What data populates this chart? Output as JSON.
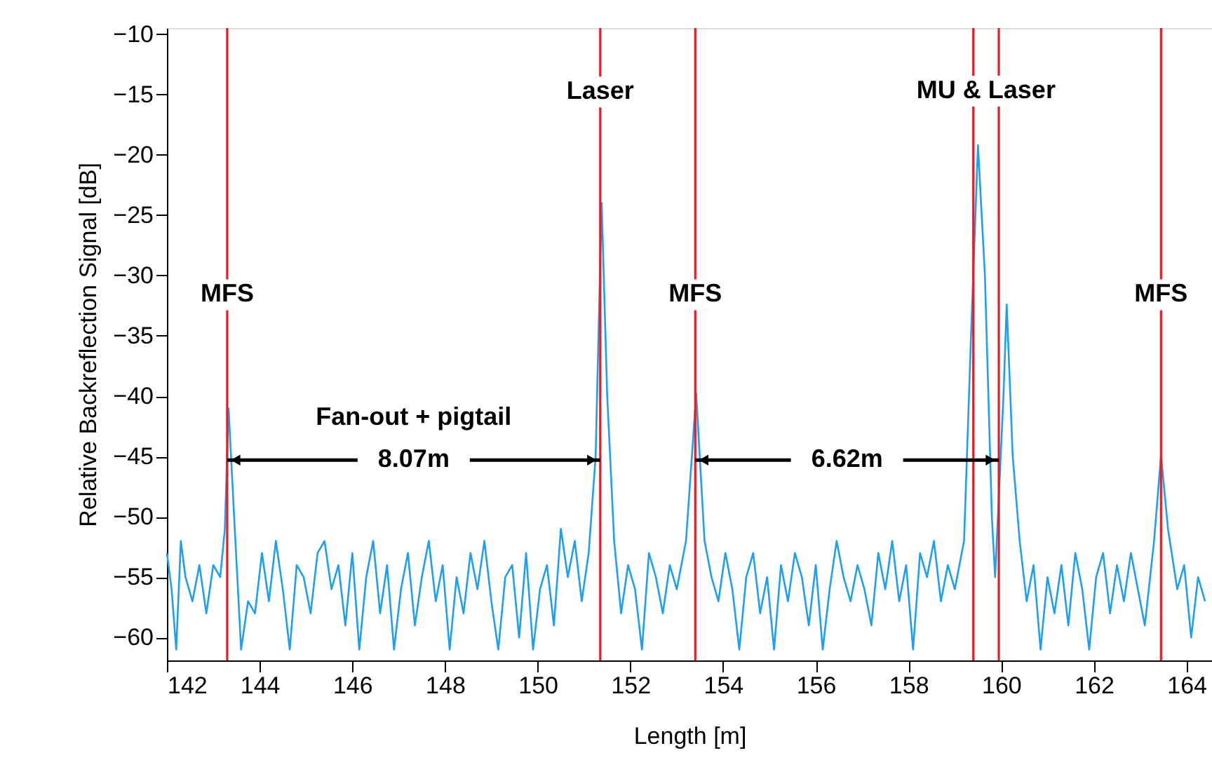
{
  "chart_data": {
    "type": "line",
    "xlabel": "Length [m]",
    "ylabel": "Relative Backreflection Signal [dB]",
    "xlim": [
      142,
      164.55
    ],
    "ylim": [
      -61.9,
      -9.5
    ],
    "xticks": [
      142,
      144,
      146,
      148,
      150,
      152,
      154,
      156,
      158,
      160,
      162,
      164
    ],
    "yticks": [
      -10,
      -15,
      -20,
      -25,
      -30,
      -35,
      -40,
      -45,
      -50,
      -55,
      -60
    ],
    "grid": false,
    "marker": "none",
    "line_style": "solid",
    "series": [
      {
        "color": "#1e9ff0",
        "x": [
          142.0,
          142.1,
          142.2,
          142.3,
          142.4,
          142.55,
          142.7,
          142.85,
          143.0,
          143.15,
          143.25,
          143.33,
          143.45,
          143.6,
          143.75,
          143.9,
          144.05,
          144.2,
          144.35,
          144.5,
          144.65,
          144.8,
          144.95,
          145.1,
          145.25,
          145.4,
          145.55,
          145.7,
          145.85,
          146.0,
          146.15,
          146.3,
          146.45,
          146.6,
          146.75,
          146.9,
          147.05,
          147.2,
          147.35,
          147.5,
          147.65,
          147.8,
          147.95,
          148.1,
          148.25,
          148.4,
          148.55,
          148.7,
          148.85,
          149.0,
          149.15,
          149.3,
          149.45,
          149.6,
          149.75,
          149.9,
          150.05,
          150.2,
          150.35,
          150.5,
          150.65,
          150.8,
          150.95,
          151.1,
          151.25,
          151.38,
          151.5,
          151.65,
          151.8,
          151.95,
          152.1,
          152.25,
          152.4,
          152.55,
          152.7,
          152.85,
          153.0,
          153.2,
          153.42,
          153.6,
          153.75,
          153.9,
          154.05,
          154.2,
          154.35,
          154.5,
          154.65,
          154.8,
          154.95,
          155.1,
          155.25,
          155.4,
          155.55,
          155.7,
          155.85,
          156.0,
          156.15,
          156.3,
          156.45,
          156.6,
          156.75,
          156.9,
          157.05,
          157.2,
          157.35,
          157.5,
          157.65,
          157.8,
          157.95,
          158.1,
          158.25,
          158.4,
          158.55,
          158.7,
          158.85,
          159.0,
          159.2,
          159.35,
          159.5,
          159.65,
          159.8,
          159.87,
          160.05,
          160.12,
          160.25,
          160.4,
          160.55,
          160.7,
          160.85,
          161.0,
          161.15,
          161.3,
          161.45,
          161.6,
          161.75,
          161.9,
          162.05,
          162.2,
          162.35,
          162.5,
          162.65,
          162.8,
          162.95,
          163.1,
          163.3,
          163.45,
          163.6,
          163.8,
          163.95,
          164.1,
          164.25,
          164.4
        ],
        "values": [
          -53,
          -56,
          -61,
          -52,
          -55,
          -57,
          -54,
          -58,
          -54,
          -55,
          -51,
          -41,
          -50,
          -61,
          -57,
          -58,
          -53,
          -57,
          -52,
          -56,
          -61,
          -54,
          -55,
          -58,
          -53,
          -52,
          -56,
          -54,
          -59,
          -53,
          -61,
          -55,
          -52,
          -58,
          -54,
          -61,
          -56,
          -53,
          -59,
          -55,
          -52,
          -57,
          -54,
          -61,
          -55,
          -58,
          -53,
          -56,
          -52,
          -57,
          -61,
          -55,
          -54,
          -60,
          -53,
          -61,
          -56,
          -54,
          -59,
          -51,
          -55,
          -52,
          -57,
          -53,
          -45,
          -24,
          -40,
          -52,
          -58,
          -54,
          -56,
          -61,
          -53,
          -55,
          -58,
          -54,
          -56,
          -52,
          -39.8,
          -52,
          -55,
          -57,
          -53,
          -56,
          -61,
          -55,
          -53,
          -58,
          -55,
          -61,
          -54,
          -57,
          -53,
          -55,
          -59,
          -54,
          -61,
          -56,
          -52,
          -55,
          -57,
          -54,
          -56,
          -59,
          -53,
          -56,
          -52,
          -57,
          -54,
          -61,
          -53,
          -55,
          -52,
          -57,
          -54,
          -56,
          -52,
          -35,
          -19.2,
          -30,
          -50,
          -55,
          -40,
          -32.4,
          -45,
          -52,
          -57,
          -54,
          -61,
          -55,
          -58,
          -54,
          -59,
          -53,
          -56,
          -61,
          -55,
          -53,
          -58,
          -54,
          -57,
          -53,
          -56,
          -59,
          -52,
          -44.9,
          -51,
          -56,
          -54,
          -60,
          -55,
          -57
        ]
      }
    ],
    "ref_lines": [
      {
        "axis": "x",
        "value": 143.3,
        "color": "#e0202a"
      },
      {
        "axis": "x",
        "value": 151.35,
        "color": "#e0202a"
      },
      {
        "axis": "x",
        "value": 153.4,
        "color": "#e0202a"
      },
      {
        "axis": "x",
        "value": 159.4,
        "color": "#e0202a"
      },
      {
        "axis": "x",
        "value": 159.95,
        "color": "#e0202a"
      },
      {
        "axis": "x",
        "value": 163.45,
        "color": "#e0202a"
      }
    ],
    "annotations": [
      {
        "text": "MFS",
        "x": 143.3,
        "y": -31.6
      },
      {
        "text": "Laser",
        "x": 151.35,
        "y": -14.8
      },
      {
        "text": "MFS",
        "x": 153.4,
        "y": -31.6
      },
      "MU & Laser",
      {
        "text": "MFS",
        "x": 163.45,
        "y": -31.6
      },
      {
        "text": "Fan-out + pigtail",
        "x": 143.3,
        "y": -45.3
      },
      {
        "text": "8.07m",
        "x": 151.35,
        "y": -45.3
      },
      {
        "text": "6.62m",
        "x": 159.95,
        "y": -45.3
      }
    ]
  }
}
